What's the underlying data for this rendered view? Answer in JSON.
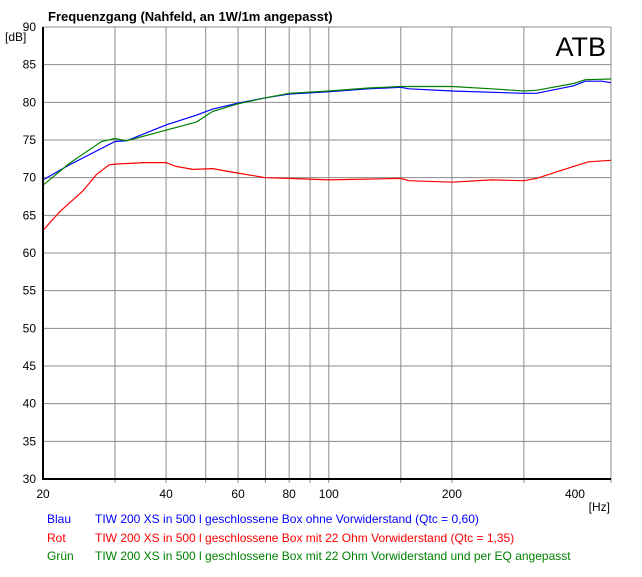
{
  "chart_data": {
    "type": "line",
    "title": "Frequenzgang (Nahfeld, an 1W/1m angepasst)",
    "watermark": "ATB",
    "xlabel": "[Hz]",
    "ylabel": "[dB]",
    "xscale": "log",
    "xlim": [
      20,
      490
    ],
    "ylim": [
      30,
      90
    ],
    "grid": true,
    "x_ticks": [
      20,
      40,
      60,
      80,
      100,
      200,
      400
    ],
    "x_tick_labels": [
      "20",
      "40",
      "60",
      "80",
      "100",
      "200",
      "400"
    ],
    "x_gridlines": [
      30,
      40,
      50,
      60,
      70,
      80,
      90,
      100,
      150,
      200,
      300
    ],
    "y_ticks": [
      30,
      35,
      40,
      45,
      50,
      55,
      60,
      65,
      70,
      75,
      80,
      85,
      90
    ],
    "y_tick_labels": [
      "30",
      "35",
      "40",
      "45",
      "50",
      "55",
      "60",
      "65",
      "70",
      "75",
      "80",
      "85",
      "90"
    ],
    "series": [
      {
        "name": "Blau",
        "label": "TIW 200 XS in 500 l geschlossene Box ohne Vorwiderstand (Qtc = 0,60)",
        "color": "#0000ff",
        "x": [
          20,
          23.2,
          30,
          32,
          40,
          47.5,
          52,
          60,
          70,
          80,
          100,
          125,
          150,
          157,
          200,
          300,
          322,
          397,
          424,
          465,
          490
        ],
        "y": [
          69.7,
          71.7,
          74.8,
          74.9,
          77.0,
          78.3,
          79.1,
          79.9,
          80.6,
          81.1,
          81.4,
          81.8,
          82.0,
          81.8,
          81.5,
          81.2,
          81.2,
          82.2,
          82.8,
          82.8,
          82.6
        ]
      },
      {
        "name": "Rot",
        "label": "TIW 200 XS in 500 l geschlossene Box mit 22 Ohm Vorwiderstand (Qtc = 1,35)",
        "color": "#ff0000",
        "x": [
          20,
          22,
          25,
          27,
          29,
          30,
          35.3,
          40,
          42.3,
          46.5,
          52,
          55.8,
          60,
          70,
          80,
          100,
          150,
          157,
          200,
          250,
          300,
          322,
          397,
          432,
          490
        ],
        "y": [
          63.0,
          65.5,
          68.2,
          70.4,
          71.7,
          71.8,
          72.0,
          72.0,
          71.5,
          71.1,
          71.2,
          70.9,
          70.6,
          70.0,
          69.9,
          69.7,
          69.9,
          69.6,
          69.4,
          69.7,
          69.6,
          69.9,
          71.5,
          72.1,
          72.3
        ]
      },
      {
        "name": "Grün",
        "label": "TIW 200 XS in 500 l geschlossene Box mit 22 Ohm Vorwiderstand und per EQ angepasst",
        "color": "#008000",
        "x": [
          20,
          23.2,
          27.8,
          30,
          32,
          40,
          47.5,
          52,
          60,
          70,
          80,
          100,
          125,
          150,
          200,
          250,
          300,
          322,
          397,
          424,
          490
        ],
        "y": [
          69.0,
          71.9,
          74.8,
          75.2,
          74.9,
          76.3,
          77.4,
          78.8,
          79.8,
          80.6,
          81.2,
          81.5,
          81.9,
          82.1,
          82.1,
          81.8,
          81.5,
          81.6,
          82.5,
          83.0,
          83.1
        ]
      }
    ]
  }
}
